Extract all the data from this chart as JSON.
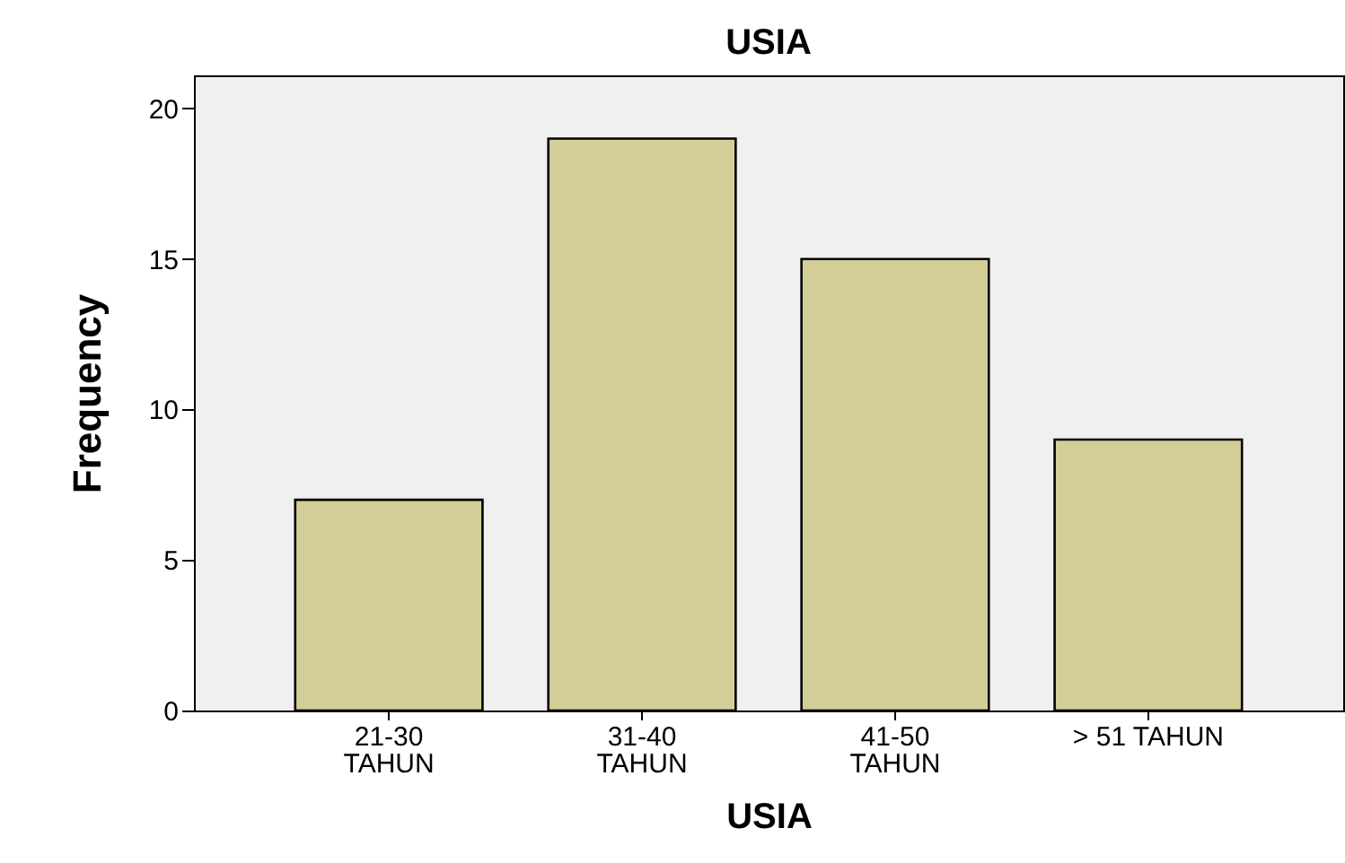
{
  "chart_data": {
    "type": "bar",
    "title": "USIA",
    "xlabel": "USIA",
    "ylabel": "Frequency",
    "categories": [
      "21-30 TAHUN",
      "31-40 TAHUN",
      "41-50 TAHUN",
      "> 51 TAHUN"
    ],
    "values": [
      7,
      19,
      15,
      9
    ],
    "color": "#d3ce98",
    "ylim": [
      0,
      21.1
    ],
    "yticks": [
      0,
      5,
      10,
      15,
      20
    ],
    "grid": false
  }
}
